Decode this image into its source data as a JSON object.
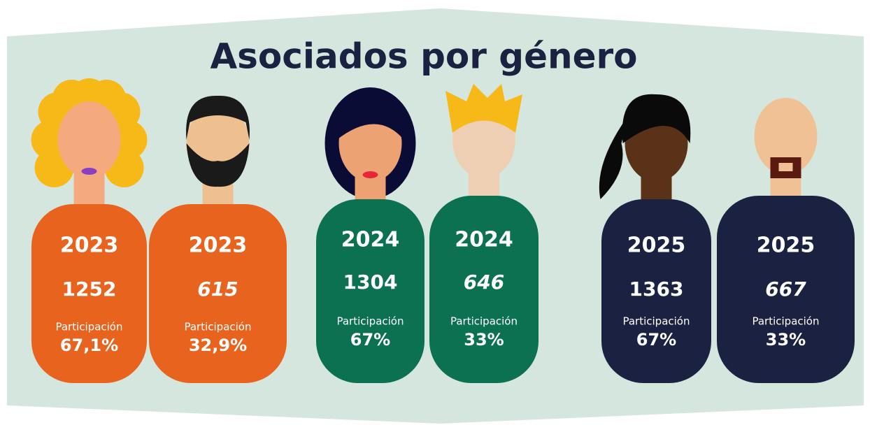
{
  "title": "Asociados por género",
  "cards": [
    {
      "year": 2023,
      "count": 1252,
      "label": "Participación",
      "share": "67,1%"
    },
    {
      "year": 2023,
      "count": 615,
      "label": "Participación",
      "share": "32,9%"
    },
    {
      "year": 2024,
      "count": 1304,
      "label": "Participación",
      "share": "67%"
    },
    {
      "year": 2024,
      "count": 646,
      "label": "Participación",
      "share": "33%"
    },
    {
      "year": 2025,
      "count": 1363,
      "label": "Participación",
      "share": "67%"
    },
    {
      "year": 2025,
      "count": 667,
      "label": "Participación",
      "share": "33%"
    }
  ]
}
